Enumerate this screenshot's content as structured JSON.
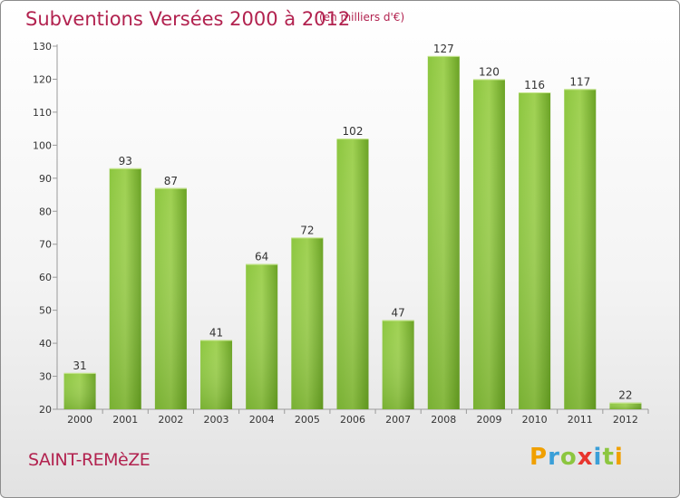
{
  "chart_data": {
    "type": "bar",
    "title": "Subventions Versées 2000 à 2012",
    "subtitle": "(en milliers d'€)",
    "categories": [
      "2000",
      "2001",
      "2002",
      "2003",
      "2004",
      "2005",
      "2006",
      "2007",
      "2008",
      "2009",
      "2010",
      "2011",
      "2012"
    ],
    "values": [
      31,
      93,
      87,
      41,
      64,
      72,
      102,
      47,
      127,
      120,
      116,
      117,
      22
    ],
    "ylim": [
      20,
      130
    ],
    "yticks": [
      20,
      30,
      40,
      50,
      60,
      70,
      80,
      90,
      100,
      110,
      120,
      130
    ],
    "grid": false,
    "bar_color": "#7ab82e",
    "title_color": "#b2224f"
  },
  "footer": {
    "commune": "SAINT-REMèZE",
    "logo_letters": [
      "P",
      "r",
      "o",
      "x",
      "i",
      "t",
      "i"
    ],
    "logo_colors": [
      "#f0a000",
      "#3a9fd8",
      "#8cc63f",
      "#e8352e",
      "#3a9fd8",
      "#8cc63f",
      "#f0a000"
    ]
  }
}
